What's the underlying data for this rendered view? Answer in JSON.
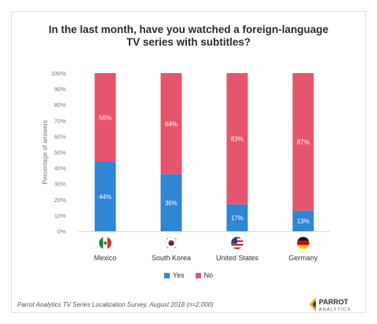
{
  "title_line1": "In the last month, have you watched a foreign-language",
  "title_line2": "TV series with subtitles?",
  "source": "Parrot Analytics TV Series Localization Survey, August 2018 (n=2,000)",
  "logo": {
    "name": "PARROT",
    "sub": "ANALYTICS"
  },
  "colors": {
    "yes": "#2f86d4",
    "no": "#e5566c"
  },
  "chart_data": {
    "type": "bar",
    "stacked": true,
    "categories": [
      "Mexico",
      "South Korea",
      "United States",
      "Germany"
    ],
    "category_icons": [
      "mexico-flag-icon",
      "south-korea-flag-icon",
      "usa-flag-icon",
      "germany-flag-icon"
    ],
    "series": [
      {
        "name": "Yes",
        "values": [
          44,
          36,
          17,
          13
        ]
      },
      {
        "name": "No",
        "values": [
          56,
          64,
          83,
          87
        ]
      }
    ],
    "ylabel": "Percentage of answers",
    "ylim": [
      0,
      100
    ],
    "yticks": [
      "0%",
      "10%",
      "20%",
      "30%",
      "40%",
      "50%",
      "60%",
      "70%",
      "80%",
      "90%",
      "100%"
    ],
    "data_labels": {
      "Yes": [
        "44%",
        "36%",
        "17%",
        "13%"
      ],
      "No": [
        "56%",
        "64%",
        "83%",
        "87%"
      ]
    },
    "legend": [
      "Yes",
      "No"
    ],
    "legend_position": "bottom",
    "grid": false
  }
}
